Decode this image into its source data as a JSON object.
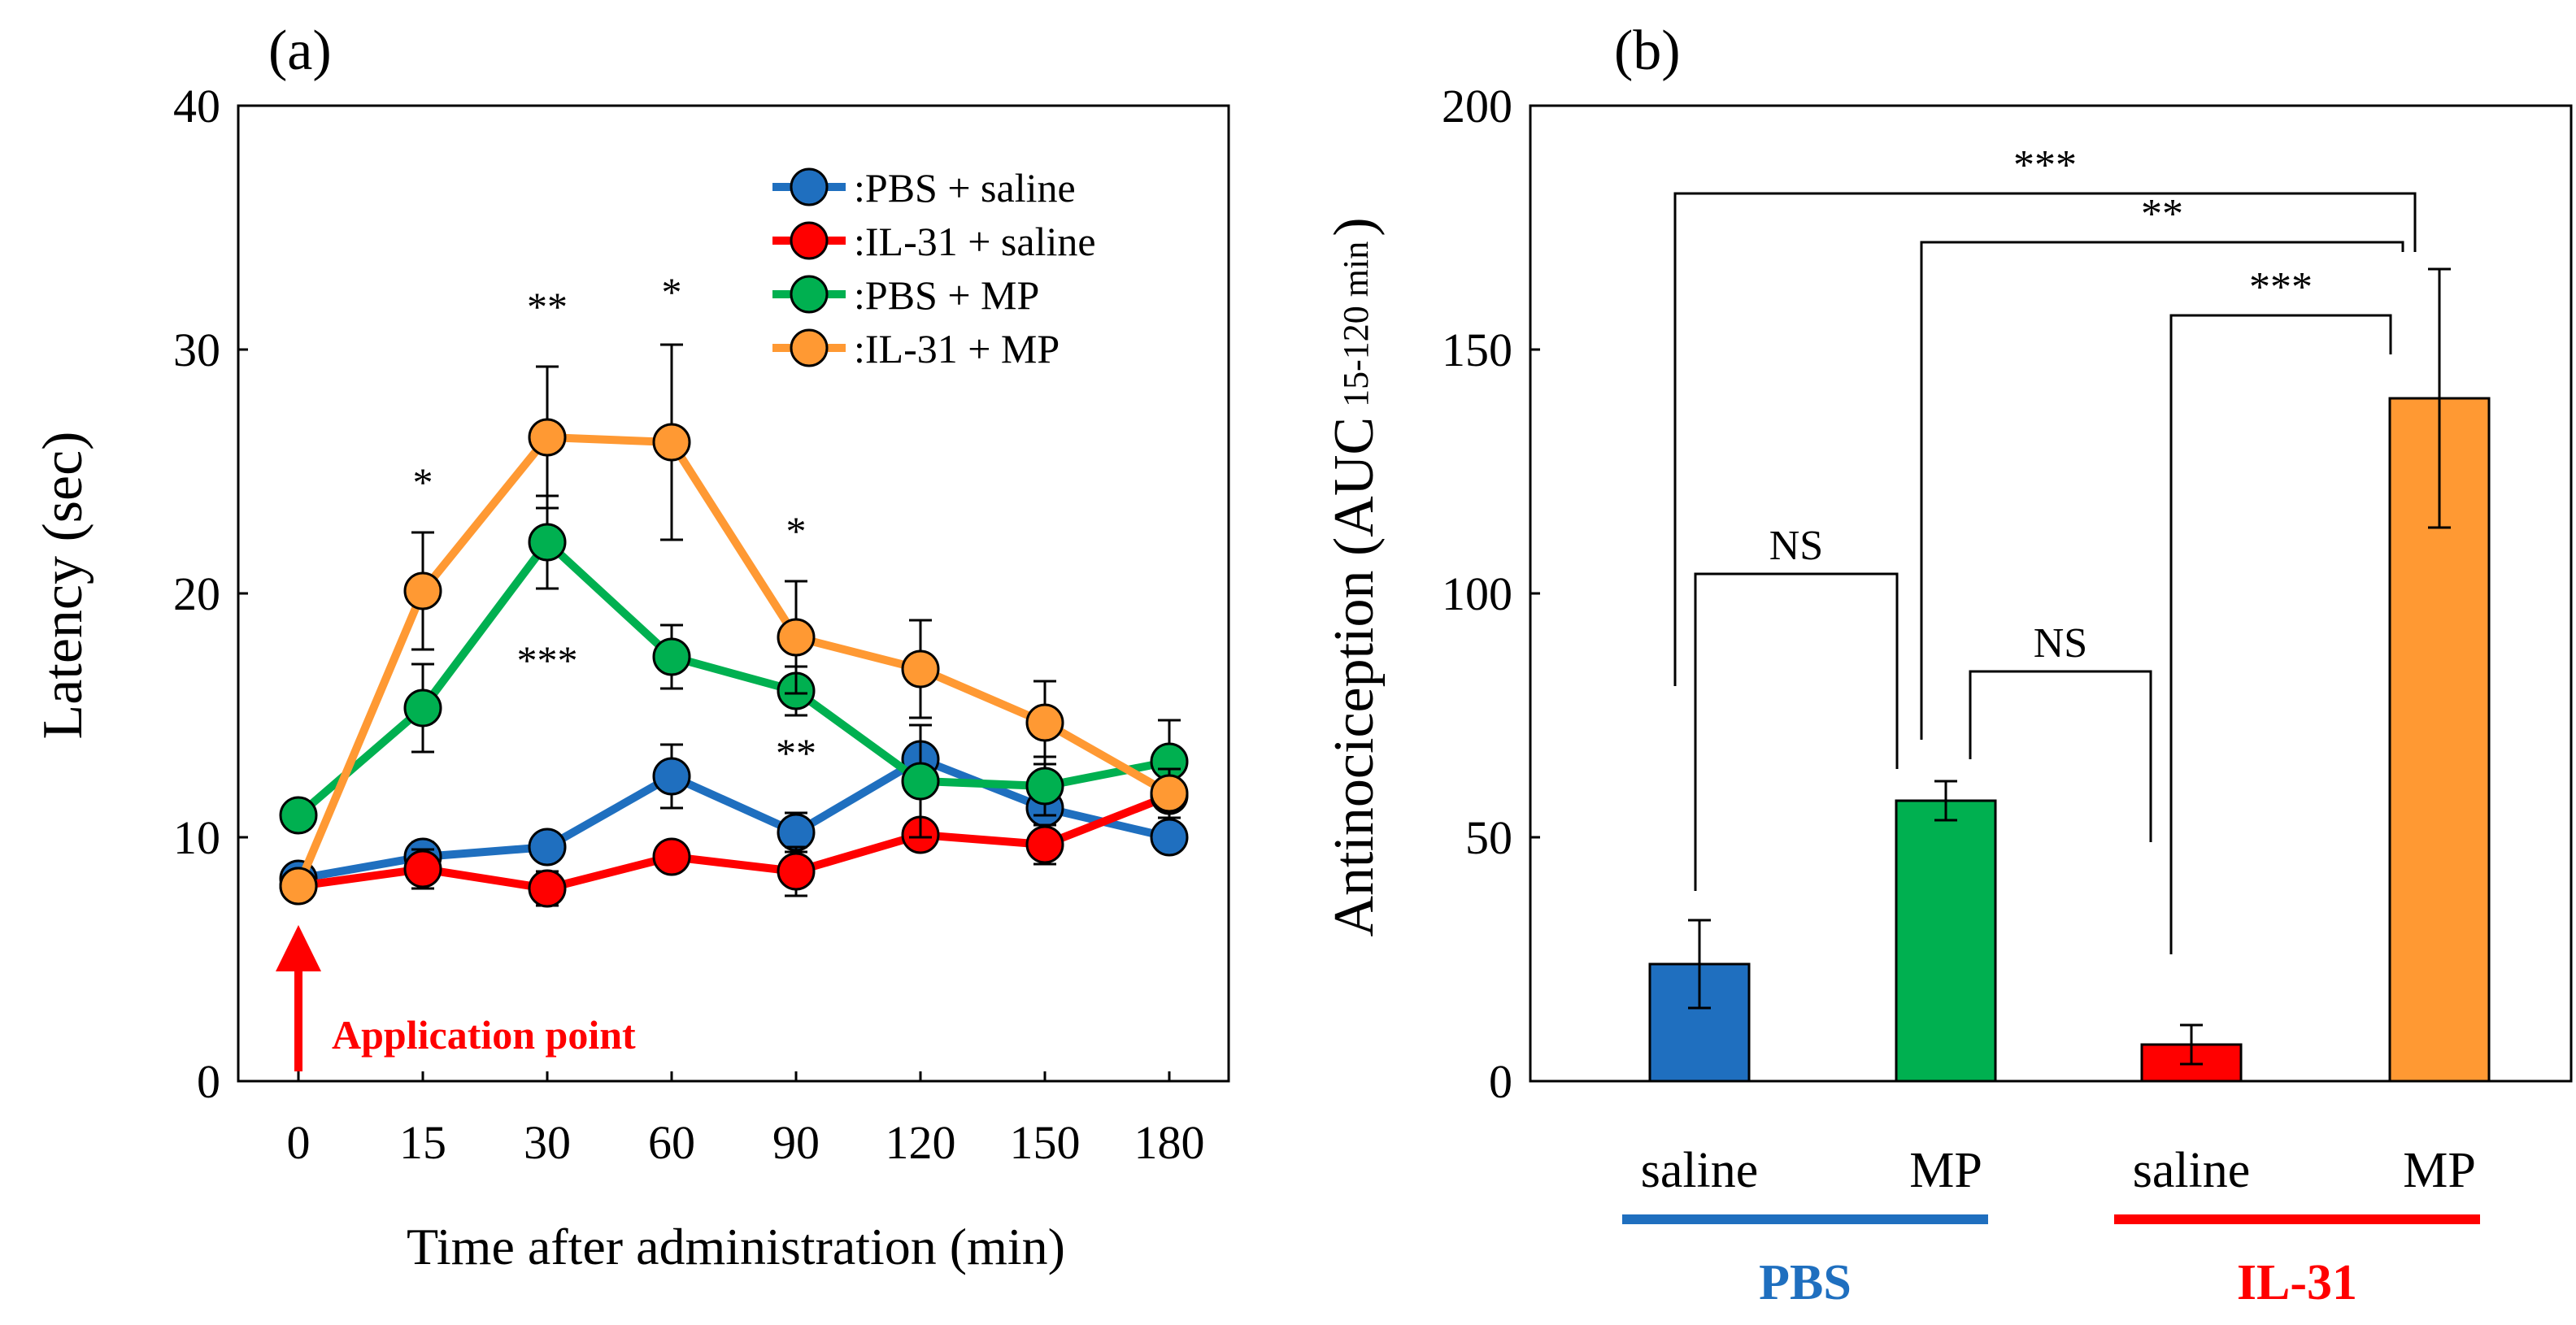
{
  "chart_data": [
    {
      "panel_label": "(a)",
      "type": "line",
      "xlabel": "Time after administration (min)",
      "ylabel": "Latency (sec)",
      "ylim": [
        0,
        40
      ],
      "yticks": [
        "0",
        "10",
        "20",
        "30",
        "40"
      ],
      "categories": [
        "0",
        "15",
        "30",
        "60",
        "90",
        "120",
        "150",
        "180"
      ],
      "legend_position": "top-right",
      "series": [
        {
          "name": "PBS + saline",
          "legend_label": ":PBS + saline",
          "color": "#1F6FBF",
          "values": [
            8.3,
            9.2,
            9.6,
            12.5,
            10.2,
            13.2,
            11.2,
            10.0
          ],
          "errors": [
            0.5,
            0.6,
            0.5,
            1.3,
            0.8,
            1.4,
            1.1,
            0.5
          ]
        },
        {
          "name": "IL-31 + saline",
          "legend_label": ":IL-31 + saline",
          "color": "#FF0000",
          "values": [
            8.0,
            8.7,
            7.9,
            9.2,
            8.6,
            10.1,
            9.7,
            11.7
          ],
          "errors": [
            0.4,
            0.8,
            0.7,
            0.5,
            1.0,
            0.5,
            0.8,
            0.5
          ]
        },
        {
          "name": "PBS + MP",
          "legend_label": ":PBS + MP",
          "color": "#00B050",
          "values": [
            10.9,
            15.3,
            22.1,
            17.4,
            16.0,
            12.3,
            12.1,
            13.1
          ],
          "errors": [
            0.4,
            1.8,
            1.9,
            1.3,
            1.0,
            2.3,
            1.2,
            1.7
          ]
        },
        {
          "name": "IL-31 + MP",
          "legend_label": ":IL-31 + MP",
          "color": "#FF9933",
          "values": [
            8.0,
            20.1,
            26.4,
            26.2,
            18.2,
            16.9,
            14.7,
            11.8
          ],
          "errors": [
            0.4,
            2.4,
            2.9,
            4.0,
            2.3,
            2.0,
            1.7,
            1.0
          ]
        }
      ],
      "significance": [
        {
          "label": "*",
          "x_index": 1,
          "y": 24.0
        },
        {
          "label": "**",
          "x_index": 2,
          "y": 31.2
        },
        {
          "label": "*",
          "x_index": 3,
          "y": 31.8
        },
        {
          "label": "*",
          "x_index": 4,
          "y": 22.0
        },
        {
          "label": "***",
          "x_index": 2,
          "y": 16.7
        },
        {
          "label": "**",
          "x_index": 4,
          "y": 12.9
        }
      ],
      "annotation": {
        "text": "Application point",
        "x_index": 0,
        "color": "#FF0000"
      }
    },
    {
      "panel_label": "(b)",
      "type": "bar",
      "ylabel_main": "Antinociception (AUC",
      "ylabel_sub": "15-120 min",
      "ylabel_close": ")",
      "ylim": [
        0,
        200
      ],
      "yticks": [
        "0",
        "50",
        "100",
        "150",
        "200"
      ],
      "categories": [
        "saline",
        "MP",
        "saline",
        "MP"
      ],
      "values": [
        24,
        57.5,
        7.5,
        140
      ],
      "errors": [
        9,
        4,
        4,
        26.5
      ],
      "colors": [
        "#1F6FBF",
        "#00B050",
        "#FF0000",
        "#FF9933"
      ],
      "groups": [
        {
          "label": "PBS",
          "color": "#1F6FBF"
        },
        {
          "label": "IL-31",
          "color": "#FF0000"
        }
      ],
      "comparisons": [
        {
          "label": "***",
          "from": 0,
          "to": 3,
          "bracket_y": 182
        },
        {
          "label": "**",
          "from": 1,
          "to": 3,
          "bracket_y": 172
        },
        {
          "label": "***",
          "from": 2,
          "to": 3,
          "bracket_y": 157
        },
        {
          "label": "NS",
          "from": 0,
          "to": 1,
          "bracket_y": 104
        },
        {
          "label": "NS",
          "from": 1,
          "to": 2,
          "bracket_y": 84
        }
      ]
    }
  ]
}
